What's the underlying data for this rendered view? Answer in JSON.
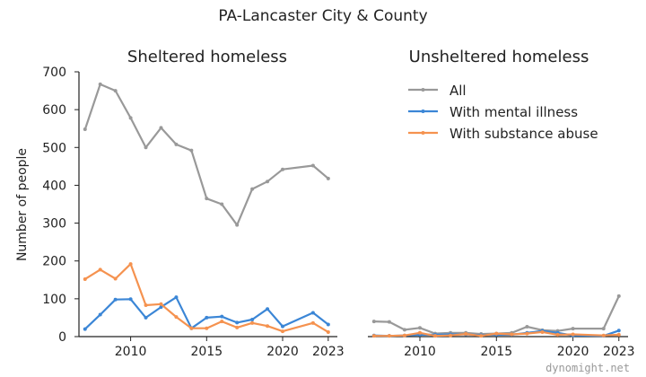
{
  "chart_data": {
    "type": "line",
    "title": "PA-Lancaster City & County",
    "ylabel": "Number of people",
    "watermark": "dynomight.net",
    "ylim": [
      0,
      700
    ],
    "yticks": [
      0,
      100,
      200,
      300,
      400,
      500,
      600,
      700
    ],
    "xlim": [
      2006.6,
      2023.6
    ],
    "xticks": [
      2010,
      2015,
      2020,
      2023
    ],
    "legend": "top-right of second panel",
    "colors": {
      "All": "#999999",
      "With mental illness": "#3b86d6",
      "With substance abuse": "#f5924f"
    },
    "panels": [
      {
        "title": "Sheltered homeless",
        "series": [
          {
            "name": "All",
            "x": [
              2007,
              2008,
              2009,
              2010,
              2011,
              2012,
              2013,
              2014,
              2015,
              2016,
              2017,
              2018,
              2019,
              2020,
              2022,
              2023
            ],
            "y": [
              548,
              667,
              650,
              578,
              500,
              552,
              508,
              492,
              365,
              350,
              295,
              390,
              410,
              442,
              452,
              418
            ]
          },
          {
            "name": "With mental illness",
            "x": [
              2007,
              2008,
              2009,
              2010,
              2011,
              2012,
              2013,
              2014,
              2015,
              2016,
              2017,
              2018,
              2019,
              2020,
              2022,
              2023
            ],
            "y": [
              20,
              58,
              98,
              99,
              50,
              78,
              104,
              22,
              50,
              53,
              37,
              45,
              73,
              27,
              63,
              32
            ]
          },
          {
            "name": "With substance abuse",
            "x": [
              2007,
              2008,
              2009,
              2010,
              2011,
              2012,
              2013,
              2014,
              2015,
              2016,
              2017,
              2018,
              2019,
              2020,
              2022,
              2023
            ],
            "y": [
              152,
              177,
              153,
              192,
              83,
              86,
              52,
              22,
              22,
              40,
              24,
              36,
              28,
              14,
              36,
              12
            ]
          }
        ]
      },
      {
        "title": "Unsheltered homeless",
        "series": [
          {
            "name": "All",
            "x": [
              2007,
              2008,
              2009,
              2010,
              2011,
              2012,
              2013,
              2014,
              2015,
              2016,
              2017,
              2018,
              2019,
              2020,
              2022,
              2023
            ],
            "y": [
              40,
              39,
              18,
              23,
              8,
              10,
              10,
              7,
              8,
              10,
              26,
              17,
              15,
              21,
              21,
              107
            ]
          },
          {
            "name": "With mental illness",
            "x": [
              2007,
              2008,
              2009,
              2010,
              2011,
              2012,
              2013,
              2014,
              2015,
              2016,
              2017,
              2018,
              2019,
              2020,
              2022,
              2023
            ],
            "y": [
              3,
              2,
              3,
              5,
              5,
              6,
              6,
              4,
              5,
              5,
              10,
              15,
              10,
              3,
              2,
              16
            ]
          },
          {
            "name": "With substance abuse",
            "x": [
              2007,
              2008,
              2009,
              2010,
              2011,
              2012,
              2013,
              2014,
              2015,
              2016,
              2017,
              2018,
              2019,
              2020,
              2022,
              2023
            ],
            "y": [
              2,
              2,
              3,
              10,
              2,
              3,
              7,
              2,
              8,
              6,
              8,
              12,
              5,
              6,
              3,
              5
            ]
          }
        ]
      }
    ]
  }
}
